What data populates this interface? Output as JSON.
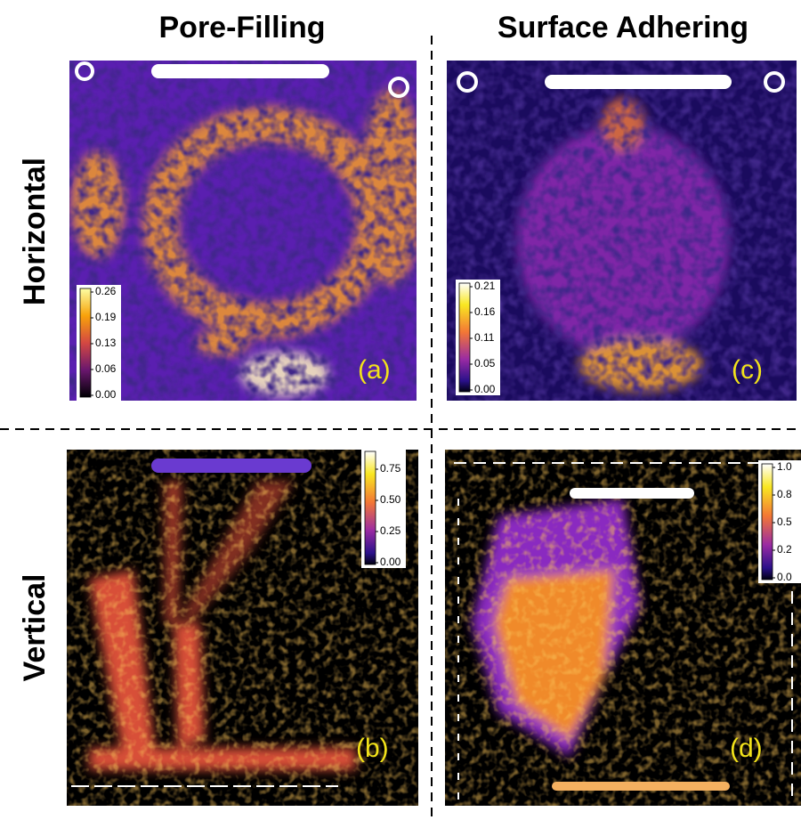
{
  "header": {
    "columns": [
      "Pore-Filling",
      "Surface Adhering"
    ],
    "rows": [
      "Horizontal",
      "Vertical"
    ]
  },
  "panels": [
    {
      "label": "(a)",
      "colorbar": [
        "0.26",
        "0.19",
        "0.13",
        "0.06",
        "0.00"
      ]
    },
    {
      "label": "(b)",
      "colorbar": [
        "0.75",
        "0.50",
        "0.25",
        "0.00"
      ]
    },
    {
      "label": "(c)",
      "colorbar": [
        "0.21",
        "0.16",
        "0.11",
        "0.05",
        "0.00"
      ]
    },
    {
      "label": "(d)",
      "colorbar": [
        "1.0",
        "0.8",
        "0.5",
        "0.2",
        "0.0"
      ]
    }
  ]
}
